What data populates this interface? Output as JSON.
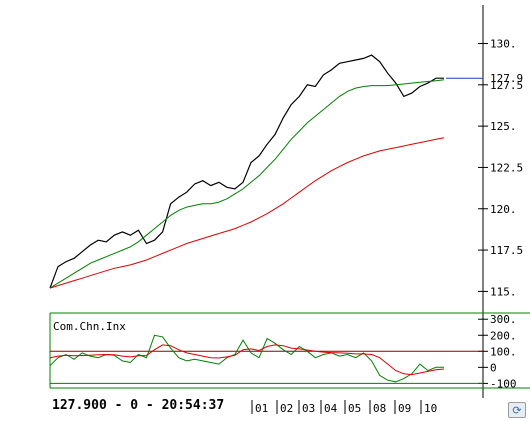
{
  "chart_data": [
    {
      "type": "line",
      "title": "",
      "x_tick_labels": [
        "01",
        "02",
        "03",
        "04",
        "05",
        "08",
        "09",
        "10"
      ],
      "y_tick_labels": [
        "130.",
        "127.5",
        "125.",
        "122.5",
        "120.",
        "117.5",
        "115."
      ],
      "ylim": [
        114.6,
        131.3
      ],
      "last_price_label": "127.9",
      "series": [
        {
          "color": "#000000",
          "values": [
            115.2,
            116.5,
            116.8,
            117.0,
            117.4,
            117.8,
            118.1,
            118.0,
            118.4,
            118.6,
            118.4,
            118.7,
            117.9,
            118.1,
            118.6,
            120.3,
            120.7,
            121.0,
            121.5,
            121.7,
            121.4,
            121.6,
            121.3,
            121.2,
            121.6,
            122.8,
            123.2,
            123.9,
            124.5,
            125.5,
            126.3,
            126.8,
            127.5,
            127.4,
            128.1,
            128.4,
            128.8,
            128.9,
            129.0,
            129.1,
            129.3,
            128.9,
            128.2,
            127.6,
            126.8,
            127.0,
            127.4,
            127.6,
            127.9,
            127.9
          ]
        },
        {
          "color": "#008000",
          "values": [
            115.2,
            115.5,
            115.8,
            116.1,
            116.4,
            116.7,
            116.9,
            117.1,
            117.3,
            117.5,
            117.7,
            118.0,
            118.4,
            118.8,
            119.2,
            119.6,
            119.9,
            120.1,
            120.2,
            120.3,
            120.3,
            120.4,
            120.6,
            120.9,
            121.2,
            121.6,
            122.0,
            122.5,
            123.0,
            123.6,
            124.2,
            124.7,
            125.2,
            125.6,
            126.0,
            126.4,
            126.8,
            127.1,
            127.3,
            127.4,
            127.45,
            127.45,
            127.45,
            127.5,
            127.55,
            127.6,
            127.65,
            127.7,
            127.75,
            127.8
          ]
        },
        {
          "color": "#e00000",
          "values": [
            115.2,
            115.35,
            115.5,
            115.65,
            115.8,
            115.95,
            116.1,
            116.25,
            116.4,
            116.5,
            116.6,
            116.75,
            116.9,
            117.1,
            117.3,
            117.5,
            117.7,
            117.9,
            118.05,
            118.2,
            118.35,
            118.5,
            118.65,
            118.8,
            119.0,
            119.2,
            119.45,
            119.7,
            120.0,
            120.3,
            120.65,
            121.0,
            121.35,
            121.7,
            122.0,
            122.3,
            122.55,
            122.8,
            123.0,
            123.2,
            123.35,
            123.5,
            123.6,
            123.7,
            123.8,
            123.9,
            124.0,
            124.1,
            124.2,
            124.3
          ]
        }
      ]
    },
    {
      "type": "line",
      "title": "Com.Chn.Inx",
      "y_tick_labels": [
        "300.",
        "200.",
        "100.",
        "0",
        "-100"
      ],
      "ylim": [
        -110,
        320
      ],
      "reference_lines": [
        100,
        -100
      ],
      "series": [
        {
          "color": "#008000",
          "values": [
            10,
            60,
            80,
            50,
            90,
            70,
            60,
            80,
            75,
            40,
            30,
            80,
            60,
            200,
            190,
            120,
            60,
            40,
            50,
            40,
            30,
            20,
            60,
            80,
            170,
            90,
            60,
            180,
            150,
            110,
            80,
            130,
            100,
            60,
            80,
            90,
            70,
            80,
            60,
            90,
            40,
            -50,
            -80,
            -90,
            -70,
            -40,
            20,
            -20,
            0,
            0
          ]
        },
        {
          "color": "#e00000",
          "values": [
            60,
            70,
            75,
            72,
            74,
            76,
            78,
            80,
            78,
            70,
            65,
            72,
            74,
            110,
            140,
            135,
            110,
            90,
            80,
            70,
            60,
            58,
            65,
            75,
            110,
            115,
            105,
            130,
            140,
            135,
            120,
            115,
            108,
            100,
            95,
            92,
            90,
            88,
            84,
            84,
            80,
            60,
            20,
            -20,
            -40,
            -45,
            -35,
            -25,
            -15,
            -10
          ]
        }
      ]
    }
  ],
  "status_text": "127.900 - 0 - 20:54:37",
  "icons": {
    "corner_button": "refresh-icon"
  },
  "colors": {
    "price": "#000000",
    "ma_green": "#008000",
    "ma_red": "#e00000",
    "last_marker": "#1f3cc0"
  }
}
